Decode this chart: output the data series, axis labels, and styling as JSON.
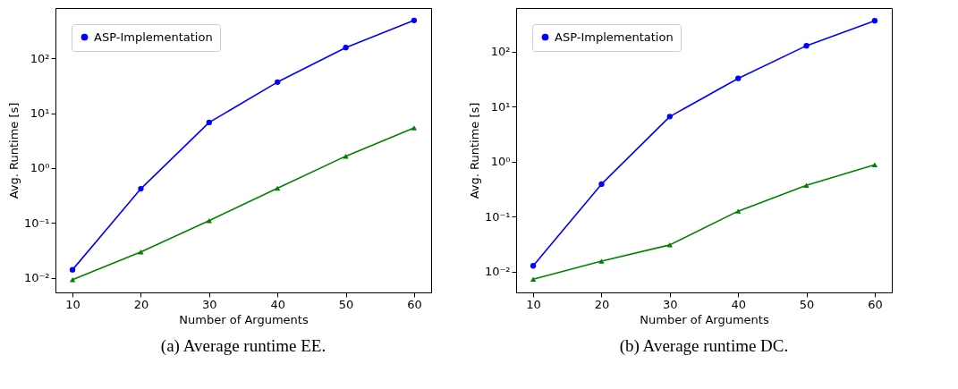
{
  "chart_data": [
    {
      "type": "line",
      "title": "(a) Average runtime EE.",
      "xlabel": "Number of Arguments",
      "ylabel": "Avg. Runtime [s]",
      "log": "y",
      "grid": false,
      "legend": "top left",
      "line_style": "solid",
      "x": [
        10,
        20,
        30,
        40,
        50,
        60
      ],
      "xlim": [
        7.5,
        62.5
      ],
      "xticks": [
        10,
        20,
        30,
        40,
        50,
        60
      ],
      "ylim": [
        0.0054,
        830
      ],
      "yticks": [
        {
          "value": 0.01,
          "label": "10⁻²"
        },
        {
          "value": 0.1,
          "label": "10⁻¹"
        },
        {
          "value": 1,
          "label": "10⁰"
        },
        {
          "value": 10,
          "label": "10¹"
        },
        {
          "value": 100,
          "label": "10²"
        }
      ],
      "series": [
        {
          "name": "ASP-Implementation",
          "color": "#0000ff",
          "marker": "circle",
          "values": [
            0.014,
            0.42,
            6.8,
            37,
            158,
            494
          ]
        },
        {
          "color": "#008000",
          "marker": "triangle",
          "values": [
            0.0092,
            0.0296,
            0.11,
            0.43,
            1.65,
            5.4
          ]
        }
      ]
    },
    {
      "type": "line",
      "title": "(b) Average runtime DC.",
      "xlabel": "Number of Arguments",
      "ylabel": "Avg. Runtime [s]",
      "log": "y",
      "grid": false,
      "legend": "top left",
      "line_style": "solid",
      "x": [
        10,
        20,
        30,
        40,
        50,
        60
      ],
      "xlim": [
        7.5,
        62.5
      ],
      "xticks": [
        10,
        20,
        30,
        40,
        50,
        60
      ],
      "ylim": [
        0.0042,
        620
      ],
      "yticks": [
        {
          "value": 0.01,
          "label": "10⁻²"
        },
        {
          "value": 0.1,
          "label": "10⁻¹"
        },
        {
          "value": 1,
          "label": "10⁰"
        },
        {
          "value": 10,
          "label": "10¹"
        },
        {
          "value": 100,
          "label": "10²"
        }
      ],
      "series": [
        {
          "name": "ASP-Implementation",
          "color": "#0000ff",
          "marker": "circle",
          "values": [
            0.0128,
            0.39,
            6.6,
            32.6,
            128,
            365
          ]
        },
        {
          "color": "#008000",
          "marker": "triangle",
          "values": [
            0.0073,
            0.0156,
            0.0307,
            0.126,
            0.37,
            0.88
          ]
        }
      ]
    }
  ]
}
